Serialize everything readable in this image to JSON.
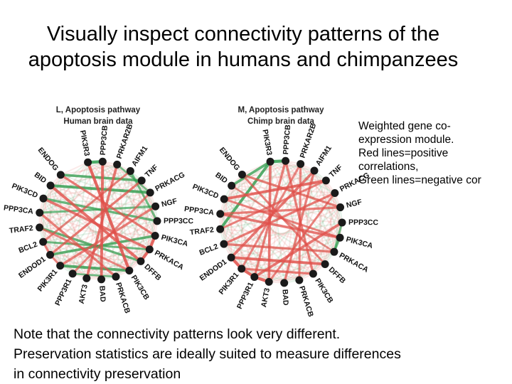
{
  "title": {
    "line1": "Visually inspect connectivity patterns of the",
    "line2": "apoptosis module in humans and chimpanzees"
  },
  "side_note": {
    "lines": [
      "Weighted gene co-",
      "expression module.",
      "Red lines=positive",
      "correlations,",
      "Green lines=negative cor"
    ]
  },
  "bottom_note": {
    "lines": [
      "Note that the connectivity patterns look very different.",
      "Preservation statistics are ideally suited to measure differences",
      "in connectivity preservation"
    ]
  },
  "colors": {
    "positive": "#e0504a",
    "negative": "#2f9e4f",
    "node": "#1a1a1a"
  },
  "networks": [
    {
      "id": "L",
      "heading1": "L, Apoptosis pathway",
      "heading2": "Human brain data",
      "nodes": [
        "PIK3R3",
        "PPP3CB",
        "PRKAR2B",
        "AIFM1",
        "TNF",
        "PRKACG",
        "NGF",
        "PPP3CC",
        "PIK3CA",
        "PRKACA",
        "DFFB",
        "PIK3CB",
        "PRKACB",
        "BAD",
        "AKT3",
        "PPP3R1",
        "PIK3R1",
        "ENDOD1",
        "BCL2",
        "TRAF2",
        "PPP3CA",
        "PIK3CD",
        "BID",
        "ENDOG"
      ],
      "edges": [
        {
          "a": "PIK3R3",
          "b": "PPP3CB",
          "sign": "neg",
          "w": 0.9
        },
        {
          "a": "ENDOG",
          "b": "TNF",
          "sign": "neg",
          "w": 0.7
        },
        {
          "a": "BID",
          "b": "PRKACG",
          "sign": "neg",
          "w": 0.8
        },
        {
          "a": "PIK3CD",
          "b": "PPP3CC",
          "sign": "neg",
          "w": 0.6
        },
        {
          "a": "PPP3CA",
          "b": "NGF",
          "sign": "neg",
          "w": 0.5
        },
        {
          "a": "ENDOD1",
          "b": "PIK3CA",
          "sign": "neg",
          "w": 0.7
        },
        {
          "a": "BCL2",
          "b": "PRKACA",
          "sign": "neg",
          "w": 0.5
        },
        {
          "a": "TRAF2",
          "b": "DFFB",
          "sign": "neg",
          "w": 0.6
        },
        {
          "a": "PIK3R1",
          "b": "PIK3CB",
          "sign": "neg",
          "w": 0.8
        },
        {
          "a": "PPP3R1",
          "b": "PRKACB",
          "sign": "neg",
          "w": 0.4
        },
        {
          "a": "AIFM1",
          "b": "PPP3CC",
          "sign": "neg",
          "w": 0.5
        },
        {
          "a": "PRKAR2B",
          "b": "PRKACG",
          "sign": "neg",
          "w": 0.4
        },
        {
          "a": "PIK3R3",
          "b": "PIK3CB",
          "sign": "pos",
          "w": 0.9
        },
        {
          "a": "PPP3CB",
          "b": "BAD",
          "sign": "pos",
          "w": 0.8
        },
        {
          "a": "PRKAR2B",
          "b": "AKT3",
          "sign": "pos",
          "w": 0.7
        },
        {
          "a": "ENDOG",
          "b": "PIK3CA",
          "sign": "pos",
          "w": 0.6
        },
        {
          "a": "BID",
          "b": "DFFB",
          "sign": "pos",
          "w": 0.8
        },
        {
          "a": "PIK3CD",
          "b": "PRKACA",
          "sign": "pos",
          "w": 0.7
        },
        {
          "a": "TNF",
          "b": "ENDOD1",
          "sign": "pos",
          "w": 0.6
        },
        {
          "a": "AIFM1",
          "b": "BCL2",
          "sign": "pos",
          "w": 0.5
        },
        {
          "a": "NGF",
          "b": "PIK3R1",
          "sign": "pos",
          "w": 0.6
        },
        {
          "a": "PRKACG",
          "b": "PPP3R1",
          "sign": "pos",
          "w": 0.5
        },
        {
          "a": "PPP3CA",
          "b": "PRKACB",
          "sign": "pos",
          "w": 0.6
        },
        {
          "a": "TRAF2",
          "b": "PIK3CB",
          "sign": "pos",
          "w": 0.5
        },
        {
          "a": "PIK3CA",
          "b": "PRKACA",
          "sign": "pos",
          "w": 0.9
        },
        {
          "a": "PRKACA",
          "b": "DFFB",
          "sign": "pos",
          "w": 0.9
        },
        {
          "a": "ENDOD1",
          "b": "PIK3R1",
          "sign": "pos",
          "w": 0.5
        },
        {
          "a": "BCL2",
          "b": "ENDOD1",
          "sign": "pos",
          "w": 0.6
        }
      ]
    },
    {
      "id": "M",
      "heading1": "M, Apoptosis pathway",
      "heading2": "Chimp brain data",
      "nodes": [
        "PIK3R3",
        "PPP3CB",
        "PRKAR2B",
        "AIFM1",
        "TNF",
        "PRKACG",
        "NGF",
        "PPP3CC",
        "PIK3CA",
        "PRKACA",
        "DFFB",
        "PIK3CB",
        "PRKACB",
        "BAD",
        "AKT3",
        "PPP3R1",
        "PIK3R1",
        "ENDOD1",
        "BCL2",
        "TRAF2",
        "PPP3CA",
        "PIK3CD",
        "BID",
        "ENDOG"
      ],
      "edges": [
        {
          "a": "PIK3R3",
          "b": "PPP3CB",
          "sign": "neg",
          "w": 0.9
        },
        {
          "a": "BID",
          "b": "PIK3R3",
          "sign": "neg",
          "w": 0.7
        },
        {
          "a": "TRAF2",
          "b": "PIK3R3",
          "sign": "neg",
          "w": 0.8
        },
        {
          "a": "PPP3CC",
          "b": "PRKACA",
          "sign": "neg",
          "w": 0.5
        },
        {
          "a": "PIK3CA",
          "b": "PRKACA",
          "sign": "neg",
          "w": 0.5
        },
        {
          "a": "PIK3CD",
          "b": "TNF",
          "sign": "pos",
          "w": 0.8
        },
        {
          "a": "ENDOG",
          "b": "NGF",
          "sign": "pos",
          "w": 0.6
        },
        {
          "a": "PPP3CA",
          "b": "PIK3CA",
          "sign": "pos",
          "w": 0.7
        },
        {
          "a": "BCL2",
          "b": "PRKACA",
          "sign": "pos",
          "w": 0.6
        },
        {
          "a": "ENDOD1",
          "b": "DFFB",
          "sign": "pos",
          "w": 0.8
        },
        {
          "a": "PIK3R1",
          "b": "PIK3CB",
          "sign": "pos",
          "w": 0.6
        },
        {
          "a": "PPP3R1",
          "b": "PPP3CC",
          "sign": "pos",
          "w": 0.7
        },
        {
          "a": "AKT3",
          "b": "PRKACG",
          "sign": "pos",
          "w": 0.5
        },
        {
          "a": "BAD",
          "b": "AIFM1",
          "sign": "pos",
          "w": 0.6
        },
        {
          "a": "PRKACB",
          "b": "PRKAR2B",
          "sign": "pos",
          "w": 0.5
        },
        {
          "a": "PIK3CB",
          "b": "PPP3CB",
          "sign": "pos",
          "w": 0.6
        },
        {
          "a": "DFFB",
          "b": "ENDOG",
          "sign": "pos",
          "w": 0.5
        },
        {
          "a": "PRKACA",
          "b": "BID",
          "sign": "pos",
          "w": 0.4
        },
        {
          "a": "PIK3CA",
          "b": "PIK3CD",
          "sign": "pos",
          "w": 0.5
        },
        {
          "a": "NGF",
          "b": "PPP3CA",
          "sign": "pos",
          "w": 0.6
        },
        {
          "a": "TNF",
          "b": "TRAF2",
          "sign": "pos",
          "w": 0.5
        },
        {
          "a": "PRKACG",
          "b": "BCL2",
          "sign": "pos",
          "w": 0.6
        },
        {
          "a": "AIFM1",
          "b": "ENDOD1",
          "sign": "pos",
          "w": 0.7
        },
        {
          "a": "PRKAR2B",
          "b": "PIK3R1",
          "sign": "pos",
          "w": 0.5
        },
        {
          "a": "PPP3CB",
          "b": "PPP3R1",
          "sign": "pos",
          "w": 0.6
        },
        {
          "a": "PIK3R3",
          "b": "AKT3",
          "sign": "pos",
          "w": 0.7
        },
        {
          "a": "ENDOD1",
          "b": "PIK3R1",
          "sign": "pos",
          "w": 0.9
        },
        {
          "a": "PIK3R1",
          "b": "PPP3R1",
          "sign": "pos",
          "w": 0.9
        },
        {
          "a": "PPP3R1",
          "b": "AKT3",
          "sign": "pos",
          "w": 0.9
        }
      ]
    }
  ]
}
